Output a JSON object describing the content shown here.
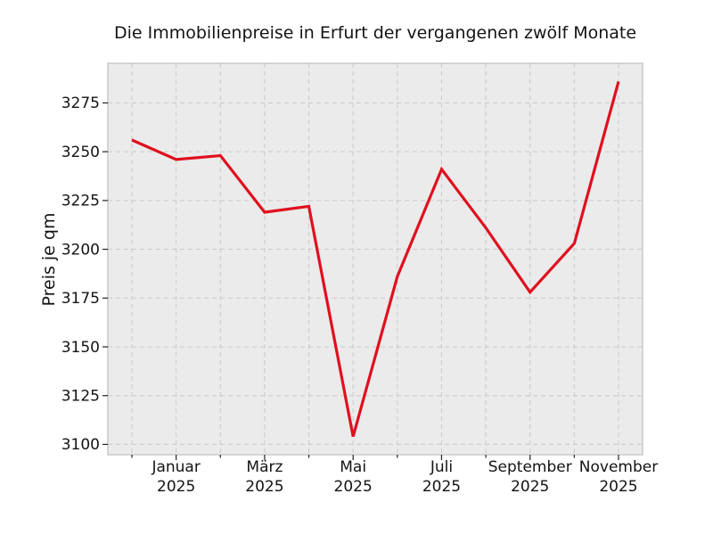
{
  "figure": {
    "background": "#ffffff"
  },
  "chart_data": {
    "type": "line",
    "title": "Die Immobilienpreise in Erfurt der vergangenen zwölf Monate",
    "xlabel": "",
    "ylabel": "Preis je qm",
    "n_points": 12,
    "values": [
      3256,
      3246,
      3248,
      3219,
      3222,
      3104,
      3186,
      3241,
      3211,
      3178,
      3203,
      3286
    ],
    "x_major_ticks": [
      {
        "index": 1,
        "line1": "Januar",
        "line2": "2025"
      },
      {
        "index": 3,
        "line1": "März",
        "line2": "2025"
      },
      {
        "index": 5,
        "line1": "Mai",
        "line2": "2025"
      },
      {
        "index": 7,
        "line1": "Juli",
        "line2": "2025"
      },
      {
        "index": 9,
        "line1": "September",
        "line2": "2025"
      },
      {
        "index": 11,
        "line1": "November",
        "line2": "2025"
      }
    ],
    "y_ticks": [
      3100,
      3125,
      3150,
      3175,
      3200,
      3225,
      3250,
      3275
    ],
    "ylim": [
      3094.7,
      3295.3
    ],
    "grid": "dashed-both-axes",
    "legend": "none",
    "line_color": "#e0101e",
    "plot_bg": "#ebebeb",
    "grid_color": "#c9c9c9",
    "axes_edge_color": "#bdbdbd",
    "tick_color": "#222222",
    "text_color": "#141414"
  }
}
